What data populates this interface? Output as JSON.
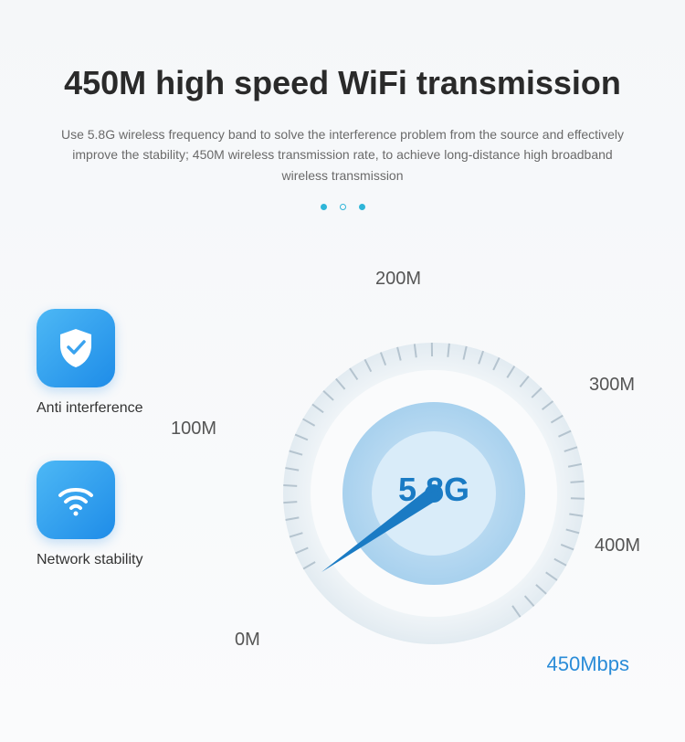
{
  "header": {
    "title": "450M high speed WiFi transmission",
    "description": "Use 5.8G wireless frequency band to solve the interference problem from the source and effectively improve the stability; 450M wireless transmission rate, to achieve long-distance high broadband wireless transmission"
  },
  "dots": {
    "color": "#2eb5d8",
    "pattern": [
      "solid",
      "ring",
      "solid"
    ]
  },
  "features": [
    {
      "icon": "shield-check",
      "label": "Anti interference"
    },
    {
      "icon": "wifi",
      "label": "Network stability"
    }
  ],
  "gauge": {
    "type": "radial-gauge",
    "center_text": "5.8G",
    "center_color": "#1a7bc4",
    "center_fontsize": 36,
    "ticks": [
      {
        "label": "0M",
        "angle_deg": 210
      },
      {
        "label": "100M",
        "angle_deg": 160
      },
      {
        "label": "200M",
        "angle_deg": 90
      },
      {
        "label": "300M",
        "angle_deg": 30
      },
      {
        "label": "400M",
        "angle_deg": -20
      },
      {
        "label": "450Mbps",
        "angle_deg": -55,
        "highlight": true
      }
    ],
    "tick_label_fontsize": 20,
    "tick_label_color": "#555555",
    "highlight_color": "#2a8cd8",
    "highlight_fontsize": 22,
    "needle_angle_deg": -55,
    "ring_outer_radius": 165,
    "ring_inner_radius_1": 100,
    "ring_inner_radius_2": 68,
    "ring_color_outer": "#e8eef2",
    "ring_color_mid": "#bcdaf0",
    "ring_color_inner": "#9fccec",
    "needle_color": "#1a7bc4",
    "tick_mark_color": "#b5c4cf",
    "background_color": "#f5f7f9"
  },
  "icon_box": {
    "gradient_start": "#4db8f5",
    "gradient_end": "#1e8ce8",
    "border_radius": 20,
    "size": 86,
    "glyph_color": "#ffffff"
  }
}
